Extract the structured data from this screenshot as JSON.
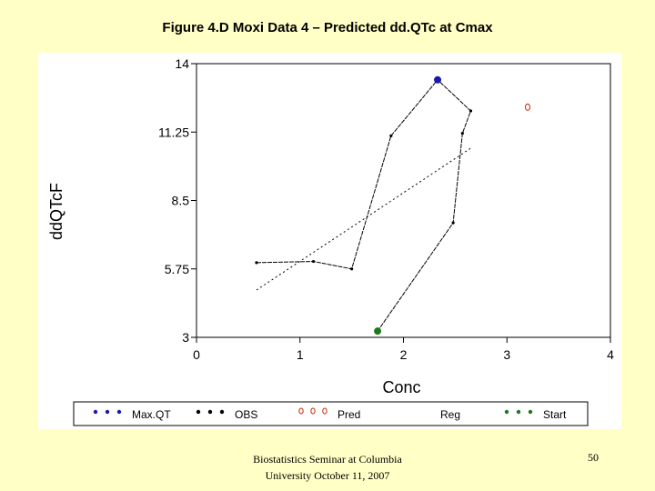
{
  "slide": {
    "title": "Figure 4.D Moxi Data 4 – Predicted dd.QTc at Cmax",
    "footer_line1": "Biostatistics Seminar at Columbia",
    "footer_line2": "University October 11, 2007",
    "page_number": "50"
  },
  "chart_data": {
    "type": "line",
    "xlabel": "Conc",
    "ylabel": "ddQTcF",
    "xlim": [
      0,
      4
    ],
    "ylim": [
      3,
      14
    ],
    "x_ticks": [
      "0",
      "1",
      "2",
      "3",
      "4"
    ],
    "y_ticks": [
      "3",
      "5.75",
      "8.5",
      "11.25",
      "14"
    ],
    "grid": false,
    "legend_position": "bottom",
    "colors": {
      "MaxQT": "#1a1aaa",
      "OBS": "#000000",
      "Pred": "#cc2200",
      "Reg": "#000000",
      "Start": "#1a7a1a"
    },
    "series": [
      {
        "name": "MaxQT",
        "style": "marker",
        "points": [
          [
            2.33,
            13.35
          ]
        ]
      },
      {
        "name": "OBS",
        "style": "dotted-line",
        "points": [
          [
            0.58,
            6.0
          ],
          [
            1.13,
            6.05
          ],
          [
            1.5,
            5.75
          ],
          [
            1.88,
            11.1
          ],
          [
            2.33,
            13.35
          ],
          [
            2.65,
            12.1
          ],
          [
            2.57,
            11.2
          ],
          [
            2.48,
            7.6
          ],
          [
            1.75,
            3.25
          ]
        ]
      },
      {
        "name": "Pred",
        "style": "open-circle",
        "points": [
          [
            3.2,
            12.25
          ]
        ]
      },
      {
        "name": "Reg",
        "style": "dashed-line",
        "points": [
          [
            0.58,
            4.9
          ],
          [
            2.65,
            10.6
          ]
        ]
      },
      {
        "name": "Start",
        "style": "marker",
        "points": [
          [
            1.75,
            3.25
          ]
        ]
      }
    ],
    "legend": [
      {
        "name": "Max.QT",
        "symbol": "dots",
        "color": "#1a1aaa"
      },
      {
        "name": "OBS",
        "symbol": "dots",
        "color": "#000000"
      },
      {
        "name": "Pred",
        "symbol": "circles",
        "color": "#cc2200"
      },
      {
        "name": "Reg",
        "symbol": "none",
        "color": "#000000"
      },
      {
        "name": "Start",
        "symbol": "dots",
        "color": "#1a7a1a"
      }
    ]
  }
}
